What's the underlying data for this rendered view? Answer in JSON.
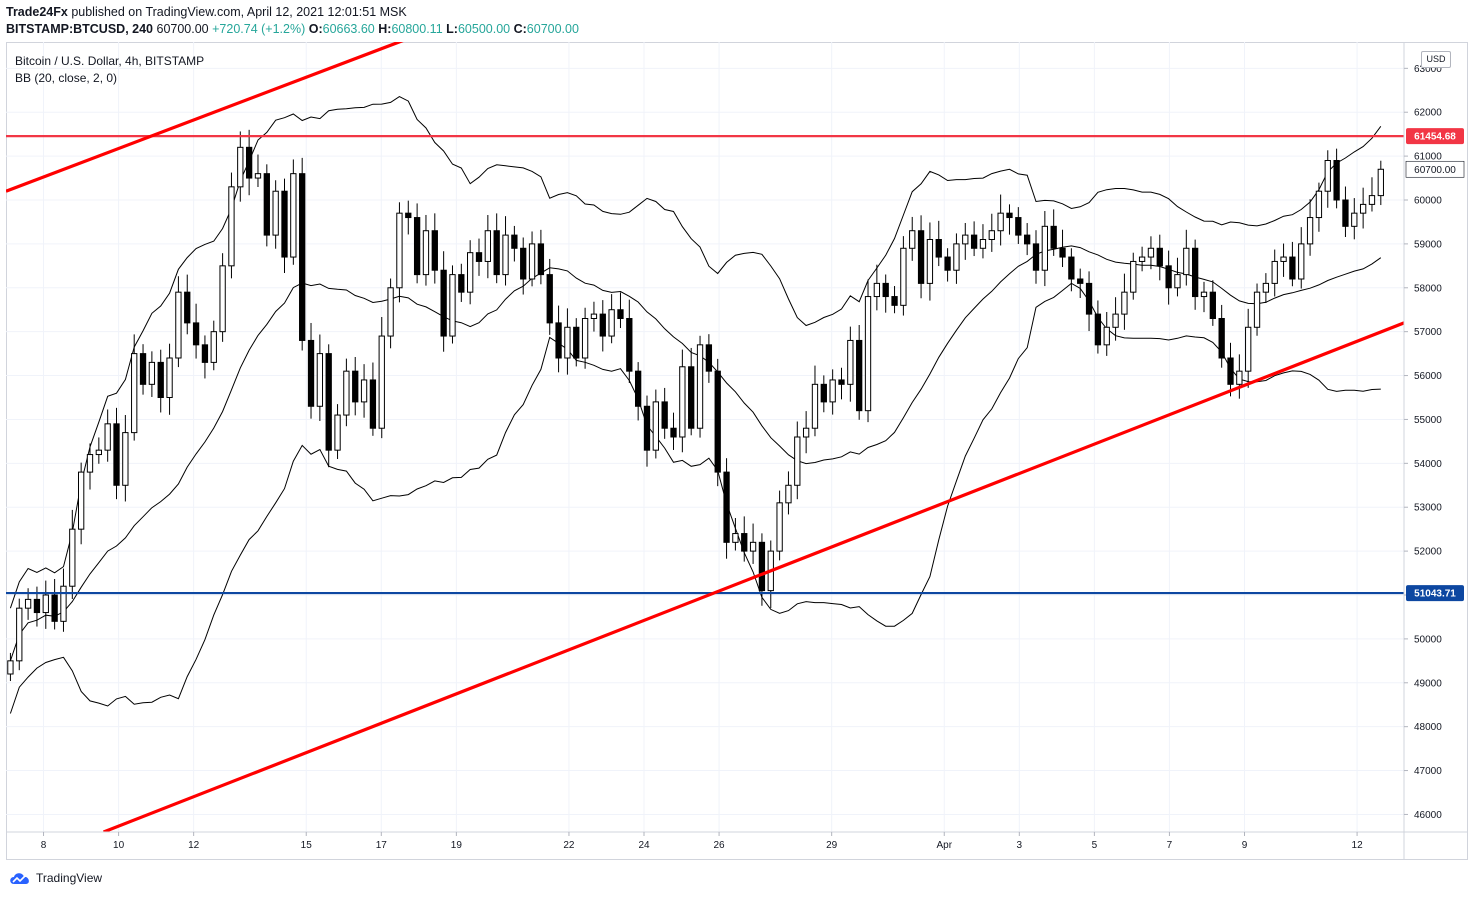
{
  "header": {
    "author": "Trade24Fx",
    "published": " published on TradingView.com, April 12, 2021 12:01:51 MSK",
    "symbol": "BITSTAMP:BTCUSD, 240",
    "last": "60700.00",
    "change": "+720.74 (+1.2%)",
    "o_label": "O:",
    "o_val": "60663.60",
    "h_label": "H:",
    "h_val": "60800.11",
    "l_label": "L:",
    "l_val": "60500.00",
    "c_label": "C:",
    "c_val": "60700.00"
  },
  "legend": {
    "series": "Bitcoin / U.S. Dollar, 4h, BITSTAMP",
    "indicator": "BB (20, close, 2, 0)"
  },
  "currency": "USD",
  "brand": "TradingView",
  "colors": {
    "trend": "#ff0000",
    "resistance": "#f23645",
    "support": "#0d47a1",
    "candle": "#000000",
    "up_text": "#26a69a"
  },
  "chart_data": {
    "type": "candlestick",
    "title": "Bitcoin / U.S. Dollar, 4h, BITSTAMP",
    "ylim": [
      45600,
      63600
    ],
    "y_ticks": [
      46000,
      47000,
      48000,
      49000,
      50000,
      51000,
      52000,
      53000,
      54000,
      55000,
      56000,
      57000,
      58000,
      59000,
      60000,
      61000,
      62000,
      63000
    ],
    "x_ticks": [
      {
        "label": "8",
        "day": 8
      },
      {
        "label": "10",
        "day": 10
      },
      {
        "label": "12",
        "day": 12
      },
      {
        "label": "15",
        "day": 15
      },
      {
        "label": "17",
        "day": 17
      },
      {
        "label": "19",
        "day": 19
      },
      {
        "label": "22",
        "day": 22
      },
      {
        "label": "24",
        "day": 24
      },
      {
        "label": "26",
        "day": 26
      },
      {
        "label": "29",
        "day": 29
      },
      {
        "label": "Apr",
        "day": 32
      },
      {
        "label": "3",
        "day": 34
      },
      {
        "label": "5",
        "day": 36
      },
      {
        "label": "7",
        "day": 38
      },
      {
        "label": "9",
        "day": 40
      },
      {
        "label": "12",
        "day": 43
      }
    ],
    "x_range_days": [
      7.0,
      44.25
    ],
    "horizontal_levels": [
      {
        "name": "resistance",
        "value": 61454.68,
        "label": "61454.68"
      },
      {
        "name": "support",
        "value": 51043.71,
        "label": "51043.71"
      }
    ],
    "last_price": {
      "value": 60700.0,
      "label": "60700.00"
    },
    "trendlines": [
      {
        "name": "upper-channel",
        "from": {
          "day": 7.0,
          "price": 60200
        },
        "to": {
          "day": 18.4,
          "price": 63900
        }
      },
      {
        "name": "lower-channel",
        "from": {
          "day": 9.6,
          "price": 45600
        },
        "to": {
          "day": 44.25,
          "price": 57200
        }
      }
    ],
    "closes": [
      49500,
      50700,
      50900,
      50600,
      51000,
      50400,
      51200,
      52500,
      53800,
      54200,
      54300,
      54900,
      53500,
      54700,
      56500,
      55800,
      56300,
      55500,
      56400,
      57900,
      57200,
      56700,
      56300,
      57000,
      58500,
      60300,
      61200,
      60500,
      60600,
      59200,
      60200,
      58700,
      60600,
      56800,
      55300,
      56500,
      54300,
      55100,
      56100,
      55400,
      55900,
      54800,
      56900,
      58000,
      59700,
      59600,
      58300,
      59300,
      58400,
      56900,
      58300,
      57900,
      58800,
      58600,
      59300,
      58300,
      59200,
      58900,
      58200,
      59000,
      58300,
      57200,
      56400,
      57100,
      56400,
      57300,
      57400,
      56900,
      57500,
      57300,
      56100,
      55300,
      54300,
      55400,
      54800,
      54600,
      56200,
      54800,
      56700,
      56100,
      53800,
      52200,
      52400,
      52000,
      52200,
      51100,
      52000,
      53100,
      53500,
      54600,
      54800,
      55800,
      55400,
      55900,
      55800,
      56800,
      55200,
      57800,
      58100,
      57800,
      57600,
      58900,
      59300,
      58100,
      59100,
      58700,
      58400,
      59000,
      59200,
      58900,
      59100,
      59300,
      59700,
      59600,
      59200,
      59000,
      58400,
      59400,
      58900,
      58700,
      58200,
      58100,
      57400,
      56700,
      57100,
      57400,
      57900,
      58600,
      58700,
      58900,
      58500,
      58000,
      58300,
      58900,
      57800,
      57900,
      57300,
      56400,
      55800,
      56100,
      57100,
      57900,
      58100,
      58600,
      58700,
      58200,
      59000,
      59600,
      60200,
      60900,
      60000,
      59400,
      59700,
      59900,
      60100,
      60700
    ]
  }
}
